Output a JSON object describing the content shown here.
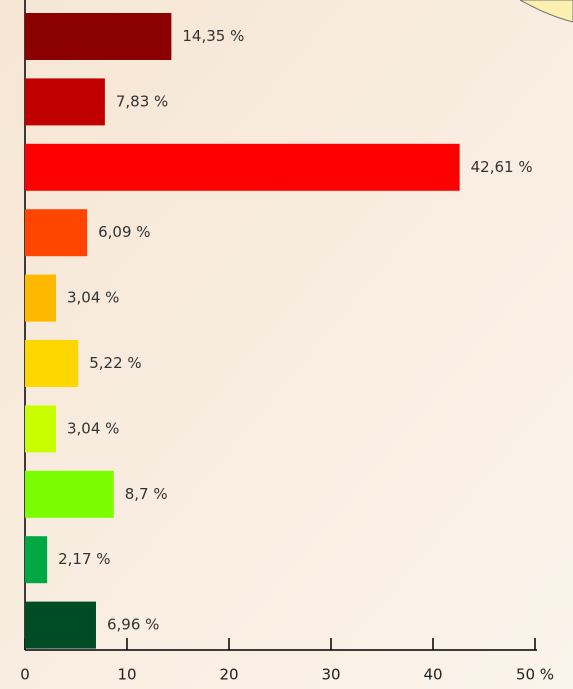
{
  "chart_data": {
    "type": "bar",
    "orientation": "horizontal",
    "categories": [
      null,
      null,
      null,
      null,
      null,
      null,
      null,
      null,
      null,
      null
    ],
    "values": [
      14.35,
      7.83,
      42.61,
      6.09,
      3.04,
      5.22,
      3.04,
      8.7,
      2.17,
      6.96
    ],
    "value_labels": [
      "14,35 %",
      "7,83 %",
      "42,61 %",
      "6,09 %",
      "3,04 %",
      "5,22 %",
      "3,04 %",
      "8,7 %",
      "2,17 %",
      "6,96 %"
    ],
    "colors": [
      "#8b0000",
      "#c00000",
      "#ff0000",
      "#ff4500",
      "#ffb800",
      "#ffd700",
      "#c8ff00",
      "#7cfc00",
      "#00a843",
      "#004d25"
    ],
    "xlim": [
      0,
      50
    ],
    "xticks": [
      0,
      10,
      20,
      30,
      40,
      {
        "value": 50,
        "label": "50 %"
      }
    ],
    "grid": false
  }
}
